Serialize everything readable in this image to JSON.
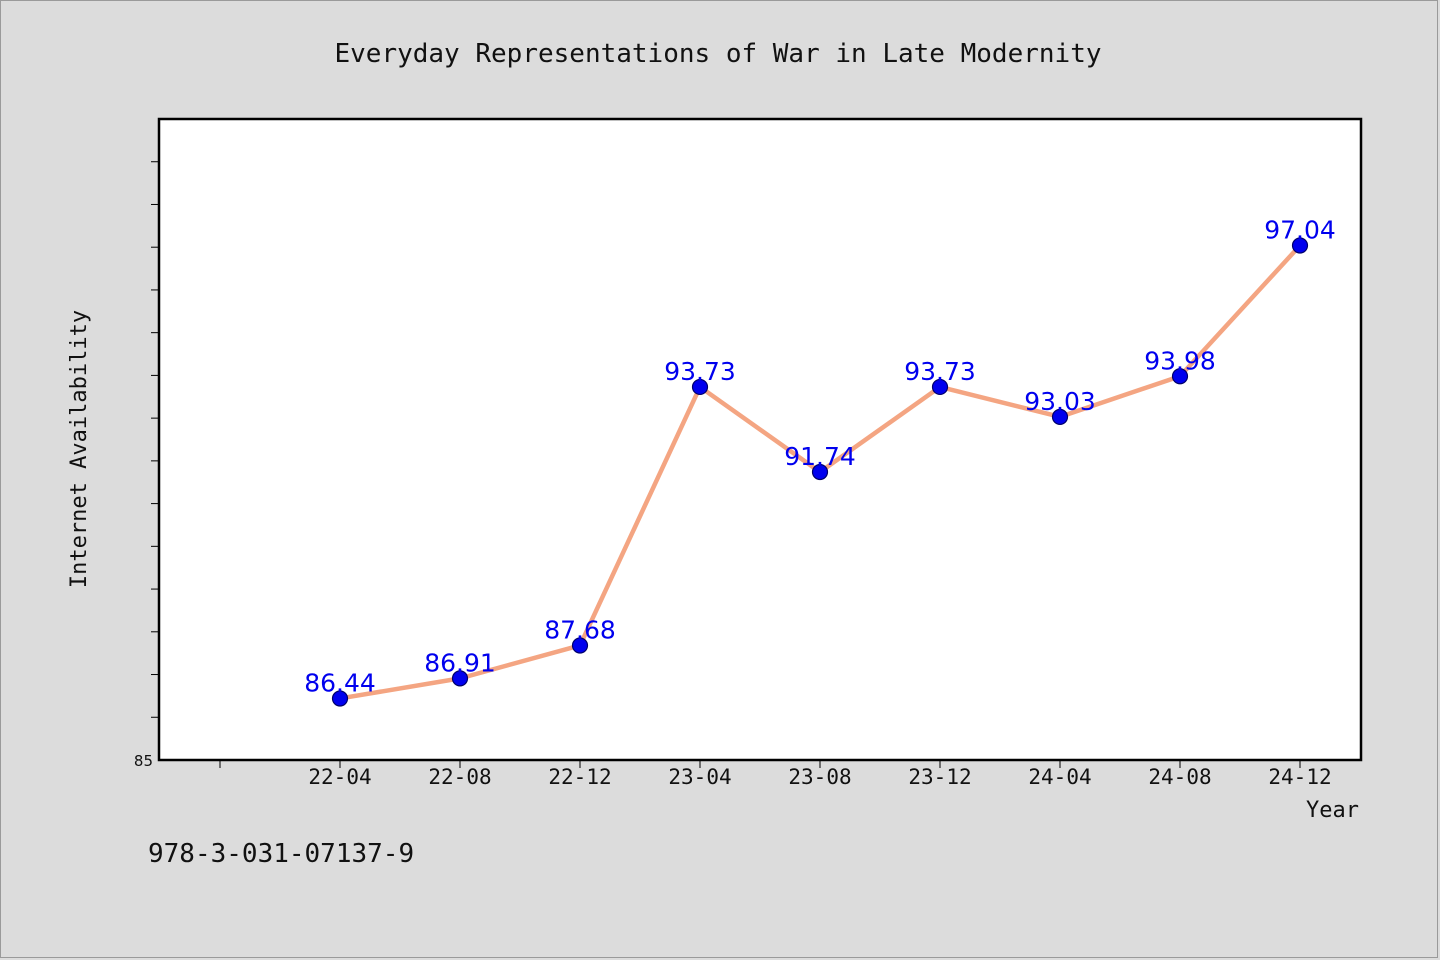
{
  "chart_data": {
    "type": "line",
    "title": "Everyday Representations of War in Late Modernity",
    "xlabel": "Year",
    "ylabel": "Internet Availability",
    "categories": [
      "22-04",
      "22-08",
      "22-12",
      "23-04",
      "23-08",
      "23-12",
      "24-04",
      "24-08",
      "24-12"
    ],
    "series": [
      {
        "values": [
          86.44,
          86.91,
          87.68,
          93.73,
          91.74,
          93.73,
          93.03,
          93.98,
          97.04
        ],
        "labels": [
          "86.44",
          "86.91",
          "87.68",
          "93.73",
          "91.74",
          "93.73",
          "93.03",
          "93.98",
          "97.04"
        ]
      }
    ],
    "ylim": [
      85,
      100
    ],
    "ytick_labels": [
      "85"
    ],
    "grid": false,
    "line_color": "#f4a582",
    "marker_color": "#0000ee",
    "label_color": "#0000ee"
  },
  "footer": {
    "isbn": "978-3-031-07137-9"
  }
}
